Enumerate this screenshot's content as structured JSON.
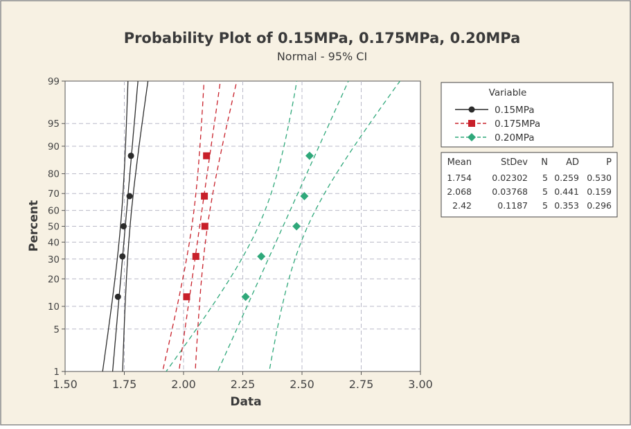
{
  "chart_data": {
    "type": "scatter",
    "scale": "normal probability",
    "title": "Probability Plot of 0.15MPa, 0.175MPa, 0.20MPa",
    "subtitle": "Normal - 95% CI",
    "xlabel": "Data",
    "ylabel": "Percent",
    "xlim": [
      1.5,
      3.0
    ],
    "ylim": [
      1,
      99
    ],
    "x_ticks": [
      "1.50",
      "1.75",
      "2.00",
      "2.25",
      "2.50",
      "2.75",
      "3.00"
    ],
    "y_ticks": [
      "1",
      "5",
      "10",
      "20",
      "30",
      "40",
      "50",
      "60",
      "70",
      "80",
      "90",
      "95",
      "99"
    ],
    "grid": true,
    "legend_title": "Variable",
    "legend_position": "right",
    "series": [
      {
        "name": "0.15MPa",
        "marker": "circle",
        "color": "#2b2b2b",
        "line_style": "solid",
        "mean": 1.754,
        "stdev": 0.02302,
        "points": [
          [
            1.723,
            12.96
          ],
          [
            1.742,
            31.48
          ],
          [
            1.747,
            50.0
          ],
          [
            1.772,
            68.52
          ],
          [
            1.778,
            87.04
          ]
        ]
      },
      {
        "name": "0.175MPa",
        "marker": "square",
        "color": "#c8202a",
        "line_style": "dashed",
        "mean": 2.068,
        "stdev": 0.03768,
        "points": [
          [
            2.013,
            12.96
          ],
          [
            2.052,
            31.48
          ],
          [
            2.09,
            50.0
          ],
          [
            2.088,
            68.52
          ],
          [
            2.097,
            87.04
          ]
        ]
      },
      {
        "name": "0.20MPa",
        "marker": "diamond",
        "color": "#2fa87a",
        "line_style": "dashed",
        "mean": 2.42,
        "stdev": 0.1187,
        "points": [
          [
            2.262,
            12.96
          ],
          [
            2.328,
            31.48
          ],
          [
            2.477,
            50.0
          ],
          [
            2.51,
            68.52
          ],
          [
            2.532,
            87.04
          ]
        ]
      }
    ],
    "stats_table": {
      "headers": [
        "Mean",
        "StDev",
        "N",
        "AD",
        "P"
      ],
      "rows": [
        [
          "1.754",
          "0.02302",
          "5",
          "0.259",
          "0.530"
        ],
        [
          "2.068",
          "0.03768",
          "5",
          "0.441",
          "0.159"
        ],
        [
          "2.42",
          "0.1187",
          "5",
          "0.353",
          "0.296"
        ]
      ]
    }
  },
  "colors": {
    "page_background": "#f7f1e3",
    "plot_background": "#ffffff",
    "grid": "#b9b9c8"
  }
}
